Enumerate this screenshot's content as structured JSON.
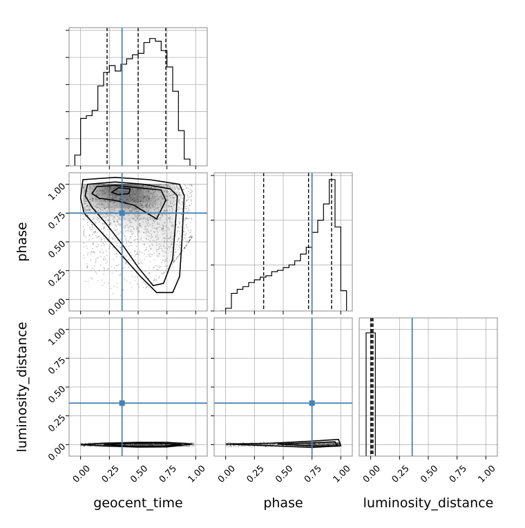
{
  "chart_data": {
    "type": "corner",
    "parameters": [
      "geocent_time",
      "phase",
      "luminosity_distance"
    ],
    "truths": [
      0.36,
      0.75,
      0.36
    ],
    "truth_color": "#4682b4",
    "axis_ticks": [
      0.0,
      0.25,
      0.5,
      0.75,
      1.0
    ],
    "tick_labels": [
      "0.00",
      "0.25",
      "0.50",
      "0.75",
      "1.00"
    ],
    "grid": true,
    "histograms": [
      {
        "parameter": "geocent_time",
        "xlim": [
          -0.1,
          1.1
        ],
        "bin_edges": [
          -0.05,
          0.0,
          0.05,
          0.1,
          0.15,
          0.2,
          0.25,
          0.3,
          0.35,
          0.4,
          0.45,
          0.5,
          0.55,
          0.6,
          0.65,
          0.7,
          0.75,
          0.8,
          0.85,
          0.9,
          0.95,
          1.0
        ],
        "counts": [
          0.08,
          0.35,
          0.37,
          0.41,
          0.59,
          0.69,
          0.74,
          0.7,
          0.75,
          0.79,
          0.82,
          0.83,
          0.91,
          0.94,
          0.92,
          0.85,
          0.73,
          0.55,
          0.26,
          0.05,
          0.0
        ],
        "quantiles": [
          0.23,
          0.5,
          0.74
        ]
      },
      {
        "parameter": "phase",
        "xlim": [
          -0.1,
          1.1
        ],
        "bin_edges": [
          -0.05,
          0.0,
          0.05,
          0.1,
          0.15,
          0.2,
          0.25,
          0.3,
          0.35,
          0.4,
          0.45,
          0.5,
          0.55,
          0.6,
          0.65,
          0.7,
          0.75,
          0.8,
          0.85,
          0.9,
          0.95,
          1.0,
          1.05
        ],
        "counts": [
          0.0,
          0.02,
          0.13,
          0.16,
          0.18,
          0.21,
          0.23,
          0.25,
          0.26,
          0.29,
          0.3,
          0.32,
          0.34,
          0.37,
          0.42,
          0.47,
          0.58,
          0.67,
          0.79,
          0.97,
          0.62,
          0.15
        ],
        "quantiles": [
          0.33,
          0.72,
          0.92
        ]
      },
      {
        "parameter": "luminosity_distance",
        "xlim": [
          -0.1,
          1.1
        ],
        "bin_edges": [
          -0.04,
          0.04
        ],
        "counts": [
          0.97
        ],
        "quantiles": [
          0.0,
          0.01,
          0.02
        ]
      }
    ],
    "panels_2d": [
      {
        "x": "geocent_time",
        "y": "phase",
        "xlim": [
          -0.1,
          1.1
        ],
        "ylim": [
          -0.1,
          1.1
        ]
      },
      {
        "x": "geocent_time",
        "y": "luminosity_distance",
        "xlim": [
          -0.1,
          1.1
        ],
        "ylim": [
          -0.1,
          1.1
        ]
      },
      {
        "x": "phase",
        "y": "luminosity_distance",
        "xlim": [
          -0.1,
          1.1
        ],
        "ylim": [
          -0.1,
          1.1
        ]
      }
    ]
  }
}
